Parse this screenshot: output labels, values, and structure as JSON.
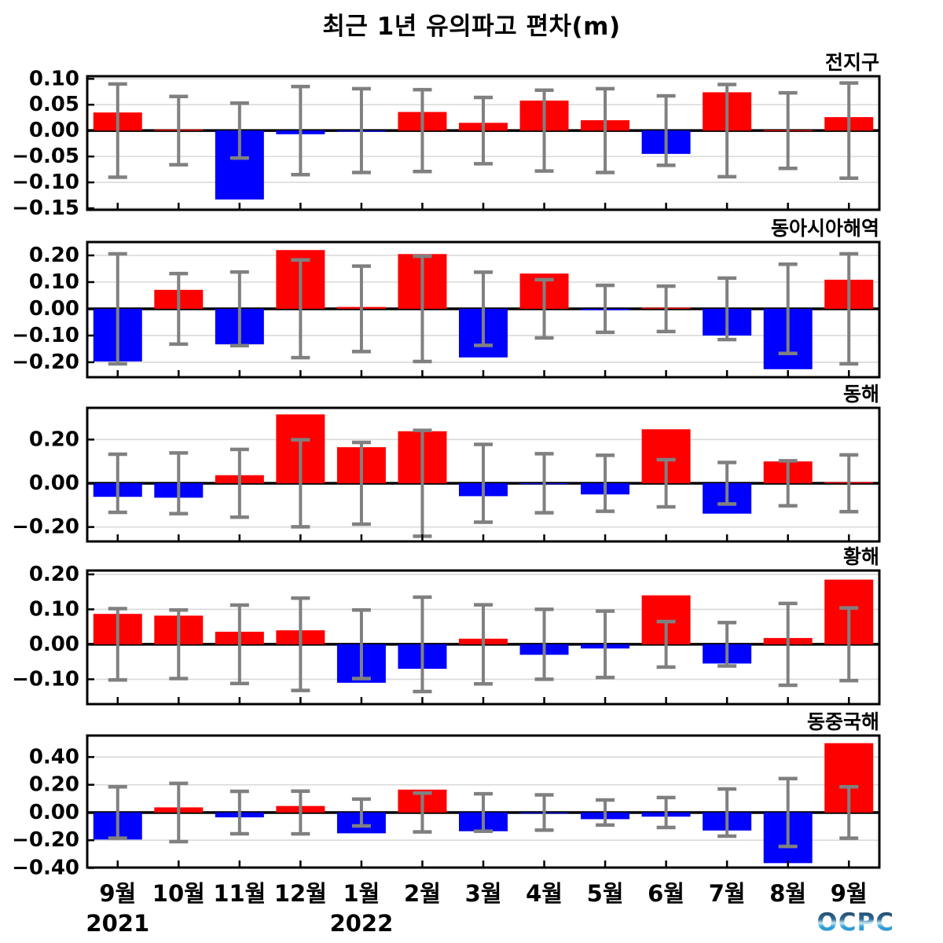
{
  "title": "최근 1년 유의파고 편차(m)",
  "logo": {
    "text": "OCPC"
  },
  "chart_data": {
    "type": "bar",
    "orientation": "vertical",
    "error_bars": "symmetric, centered at zero, gray",
    "grid": "horizontal light gridlines at labeled ticks, thick black zero line",
    "legend": "none",
    "categories": [
      "9월",
      "10월",
      "11월",
      "12월",
      "1월",
      "2월",
      "3월",
      "4월",
      "5월",
      "6월",
      "7월",
      "8월",
      "9월"
    ],
    "year_labels": [
      {
        "label": "2021",
        "month_index": 0
      },
      {
        "label": "2022",
        "month_index": 4
      }
    ],
    "colors": {
      "positive": "#ff0000",
      "negative": "#0000ff",
      "error": "#808080",
      "grid": "#d9d9d9",
      "axis": "#000000"
    },
    "panels": [
      {
        "id": "global",
        "name": "전지구",
        "ylim": [
          -0.153,
          0.105
        ],
        "ticks": [
          0.1,
          0.05,
          0.0,
          -0.05,
          -0.1,
          -0.15
        ],
        "values": [
          0.035,
          0.002,
          -0.133,
          -0.007,
          -0.002,
          0.036,
          0.015,
          0.058,
          0.02,
          -0.045,
          0.074,
          0.001,
          0.026
        ],
        "errors": [
          0.09,
          0.066,
          0.053,
          0.085,
          0.081,
          0.079,
          0.064,
          0.078,
          0.081,
          0.067,
          0.089,
          0.073,
          0.092
        ]
      },
      {
        "id": "east-asia-seas",
        "name": "동아시아해역",
        "ylim": [
          -0.256,
          0.25
        ],
        "ticks": [
          0.2,
          0.1,
          0.0,
          -0.1,
          -0.2
        ],
        "values": [
          -0.197,
          0.071,
          -0.133,
          0.22,
          0.007,
          0.205,
          -0.182,
          0.132,
          -0.005,
          0.004,
          -0.1,
          -0.226,
          0.109
        ],
        "errors": [
          0.206,
          0.132,
          0.138,
          0.183,
          0.16,
          0.197,
          0.137,
          0.109,
          0.088,
          0.085,
          0.115,
          0.167,
          0.206
        ]
      },
      {
        "id": "east-sea",
        "name": "동해",
        "ylim": [
          -0.266,
          0.345
        ],
        "ticks": [
          0.2,
          0.0,
          -0.2
        ],
        "values": [
          -0.062,
          -0.066,
          0.037,
          0.315,
          0.165,
          0.238,
          -0.059,
          -0.002,
          -0.051,
          0.247,
          -0.139,
          0.1,
          0.005
        ],
        "errors": [
          0.133,
          0.139,
          0.155,
          0.199,
          0.187,
          0.242,
          0.178,
          0.135,
          0.128,
          0.108,
          0.095,
          0.103,
          0.13
        ]
      },
      {
        "id": "yellow-sea",
        "name": "황해",
        "ylim": [
          -0.171,
          0.211
        ],
        "ticks": [
          0.2,
          0.1,
          0.0,
          -0.1
        ],
        "values": [
          0.087,
          0.082,
          0.036,
          0.04,
          -0.11,
          -0.07,
          0.016,
          -0.03,
          -0.012,
          0.14,
          -0.055,
          0.018,
          0.185
        ],
        "errors": [
          0.102,
          0.098,
          0.112,
          0.132,
          0.098,
          0.135,
          0.113,
          0.1,
          0.095,
          0.065,
          0.062,
          0.117,
          0.104
        ]
      },
      {
        "id": "east-china-sea",
        "name": "동중국해",
        "ylim": [
          -0.397,
          0.555
        ],
        "ticks": [
          0.4,
          0.2,
          0.0,
          -0.2,
          -0.4
        ],
        "values": [
          -0.195,
          0.037,
          -0.035,
          0.047,
          -0.15,
          0.165,
          -0.135,
          -0.003,
          -0.048,
          -0.03,
          -0.13,
          -0.365,
          0.5
        ],
        "errors": [
          0.185,
          0.21,
          0.153,
          0.154,
          0.097,
          0.14,
          0.135,
          0.127,
          0.09,
          0.108,
          0.17,
          0.245,
          0.185
        ]
      }
    ]
  }
}
